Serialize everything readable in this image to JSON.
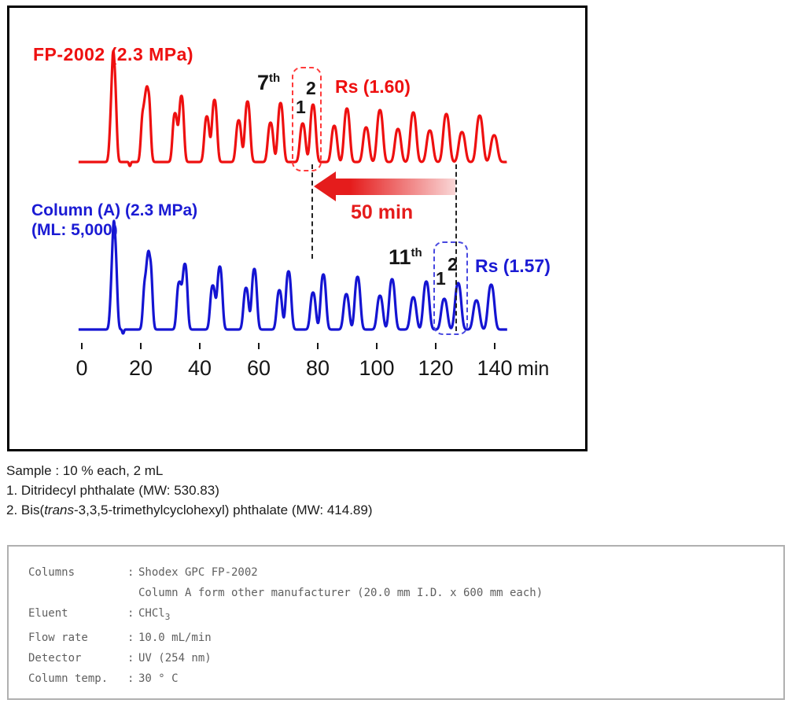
{
  "chart_data": {
    "type": "line",
    "title": "",
    "x_axis": {
      "ticks": [
        0,
        20,
        40,
        60,
        80,
        100,
        120,
        140
      ],
      "unit": "min",
      "range": [
        0,
        148
      ],
      "grid": false
    },
    "y_axis": {
      "visible": false,
      "label": ""
    },
    "series": [
      {
        "name": "FP-2002 (2.3 MPa)",
        "color": "#ee1010",
        "label_lines": [
          "FP-2002 (2.3 MPa)"
        ],
        "highlight": {
          "cycle_number": "7",
          "suffix": "th",
          "peak_labels": [
            "1",
            "2"
          ],
          "resolution": "Rs (1.60)"
        },
        "baseline_dip_t": 16.3,
        "domain_end": 144.2,
        "cycles": [
          [
            10.2,
            55,
            11.0,
            100,
            0.75
          ],
          [
            20.9,
            66,
            22.5,
            89,
            0.78
          ],
          [
            31.6,
            62,
            33.8,
            84,
            0.8
          ],
          [
            42.4,
            58,
            45.0,
            79,
            0.85
          ],
          [
            53.2,
            53,
            56.2,
            77,
            0.88
          ],
          [
            64.0,
            50,
            67.4,
            75,
            0.9
          ],
          [
            74.9,
            49,
            78.4,
            73,
            0.92
          ],
          [
            85.6,
            46,
            89.9,
            68,
            0.95
          ],
          [
            96.4,
            44,
            101.1,
            66,
            1.0
          ],
          [
            107.2,
            42,
            112.4,
            63,
            1.02
          ],
          [
            118.0,
            40,
            123.6,
            61,
            1.05
          ],
          [
            128.9,
            38,
            134.9,
            59,
            1.08
          ],
          [
            139.8,
            34,
            147.0,
            40,
            1.1
          ]
        ]
      },
      {
        "name": "Column (A) (2.3 MPa)",
        "color": "#1414d2",
        "label_lines": [
          "Column (A) (2.3 MPa)",
          "(ML: 5,000)"
        ],
        "highlight": {
          "cycle_number": "11",
          "suffix": "th",
          "peak_labels": [
            "1",
            "2"
          ],
          "resolution": "Rs (1.57)"
        },
        "baseline_dip_t": 14.0,
        "domain_end": 144.3,
        "cycles": [
          [
            10.4,
            55,
            11.2,
            97,
            0.75
          ],
          [
            21.6,
            64,
            23.1,
            88,
            0.78
          ],
          [
            33.0,
            60,
            35.0,
            83,
            0.8
          ],
          [
            44.4,
            56,
            46.8,
            80,
            0.85
          ],
          [
            55.7,
            53,
            58.5,
            77,
            0.86
          ],
          [
            67.0,
            50,
            70.1,
            74,
            0.88
          ],
          [
            78.4,
            47,
            81.9,
            70,
            0.9
          ],
          [
            89.7,
            45,
            93.5,
            67,
            0.93
          ],
          [
            101.1,
            43,
            105.2,
            64,
            0.97
          ],
          [
            112.4,
            41,
            116.8,
            61,
            1.0
          ],
          [
            122.9,
            39,
            127.6,
            59,
            1.03
          ],
          [
            133.8,
            37,
            138.8,
            57,
            1.06
          ]
        ]
      }
    ],
    "annotations": {
      "time_shift": {
        "label": "50 min",
        "between_min": [
          78.4,
          127.2
        ]
      }
    }
  },
  "figure": {
    "colors": {
      "red": "#ee1010",
      "blue": "#1b1bd4",
      "arrow_solid": "#e51c1c",
      "arrow_fade": "#f9d6d6",
      "axis_text": "#161616",
      "border": "#000000"
    }
  },
  "sample": {
    "line1": "Sample : 10 % each, 2 mL",
    "item1": "1. Ditridecyl phthalate (MW: 530.83)",
    "item2_pre": "2. Bis(",
    "item2_italic": "trans",
    "item2_post": "-3,3,5-trimethylcyclohexyl) phthalate (MW: 414.89)"
  },
  "conditions": {
    "rows": [
      {
        "label": "Columns",
        "colon": ":",
        "value": "Shodex GPC FP-2002",
        "value_sub": ""
      },
      {
        "label": "",
        "colon": "",
        "value": "Column A form other manufacturer (20.0 mm I.D. x 600 mm each)",
        "value_sub": ""
      },
      {
        "label": "Eluent",
        "colon": ":",
        "value": "CHCl",
        "value_sub": "3"
      },
      {
        "label": "Flow rate",
        "colon": ":",
        "value": "10.0 mL/min",
        "value_sub": ""
      },
      {
        "label": "Detector",
        "colon": ":",
        "value": "UV (254 nm)",
        "value_sub": ""
      },
      {
        "label": "Column temp.",
        "colon": ":",
        "value": "30 ° C",
        "value_sub": ""
      }
    ]
  }
}
